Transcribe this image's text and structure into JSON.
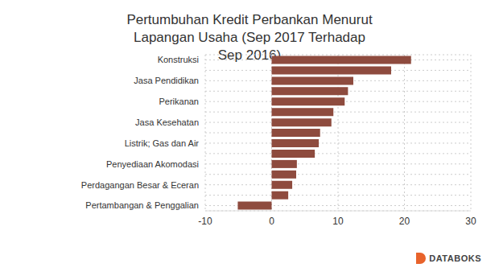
{
  "chart_data": {
    "type": "bar",
    "orientation": "horizontal",
    "title": "Pertumbuhan Kredit Perbankan Menurut Lapangan Usaha (Sep 2017 Terhadap Sep 2016)",
    "source": "DATABOKS",
    "categories": [
      "Konstruksi",
      null,
      "Jasa Pendidikan",
      null,
      "Perikanan",
      null,
      "Jasa Kesehatan",
      null,
      "Listrik; Gas dan Air",
      null,
      "Penyediaan Akomodasi",
      null,
      "Perdagangan Besar & Eceran",
      null,
      "Pertambangan & Penggalian"
    ],
    "values": [
      21,
      18,
      12.3,
      11.5,
      11,
      9.3,
      9,
      7.3,
      7.1,
      6.5,
      3.8,
      3.7,
      3.1,
      2.5,
      -5.1
    ],
    "color": "#8e4b3e",
    "xlim": [
      -10,
      30
    ],
    "xticks": [
      -10,
      0,
      10,
      20,
      30
    ],
    "grid": true
  }
}
